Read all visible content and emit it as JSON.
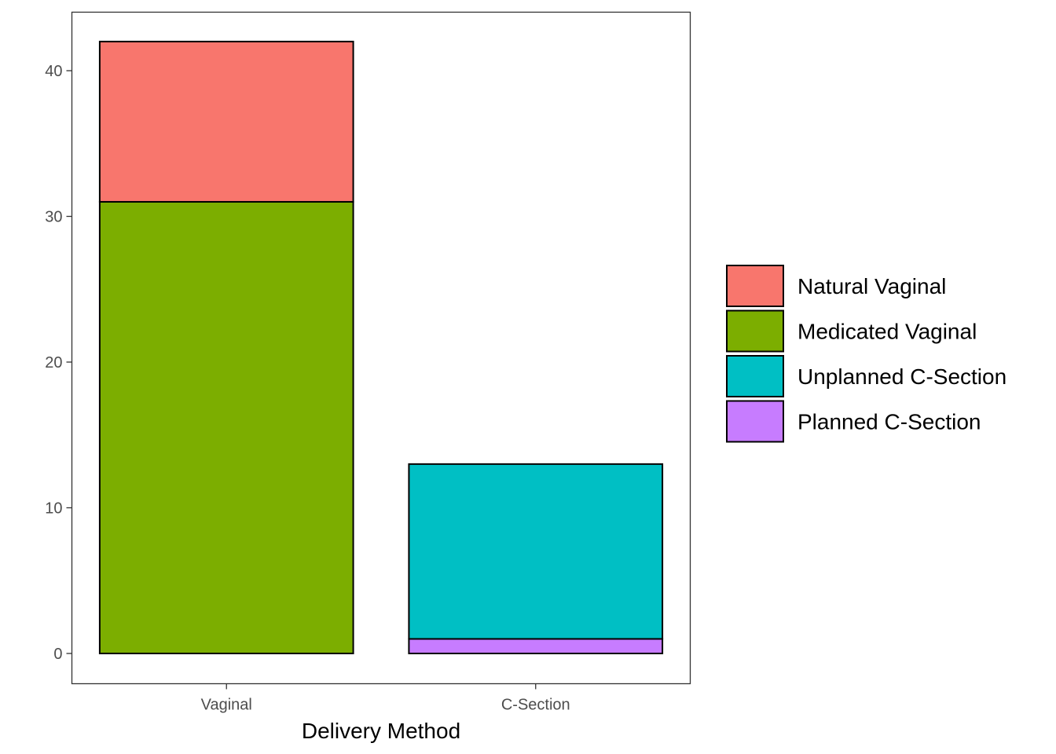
{
  "chart_data": {
    "type": "bar",
    "stacked": true,
    "title": "",
    "xlabel": "Delivery Method",
    "ylabel": "",
    "categories": [
      "Vaginal",
      "C-Section"
    ],
    "ylim": [
      0,
      43
    ],
    "yticks": [
      0,
      10,
      20,
      30,
      40
    ],
    "series": [
      {
        "name": "Planned C-Section",
        "color": "#C77CFF",
        "values": [
          0,
          1
        ]
      },
      {
        "name": "Unplanned C-Section",
        "color": "#00BFC4",
        "values": [
          0,
          12
        ]
      },
      {
        "name": "Medicated Vaginal",
        "color": "#7CAE00",
        "values": [
          31,
          0
        ]
      },
      {
        "name": "Natural Vaginal",
        "color": "#F8766D",
        "values": [
          11,
          0
        ]
      }
    ],
    "legend": {
      "placement": "right",
      "order": [
        "Natural Vaginal",
        "Medicated Vaginal",
        "Unplanned C-Section",
        "Planned C-Section"
      ]
    },
    "grid": false
  }
}
